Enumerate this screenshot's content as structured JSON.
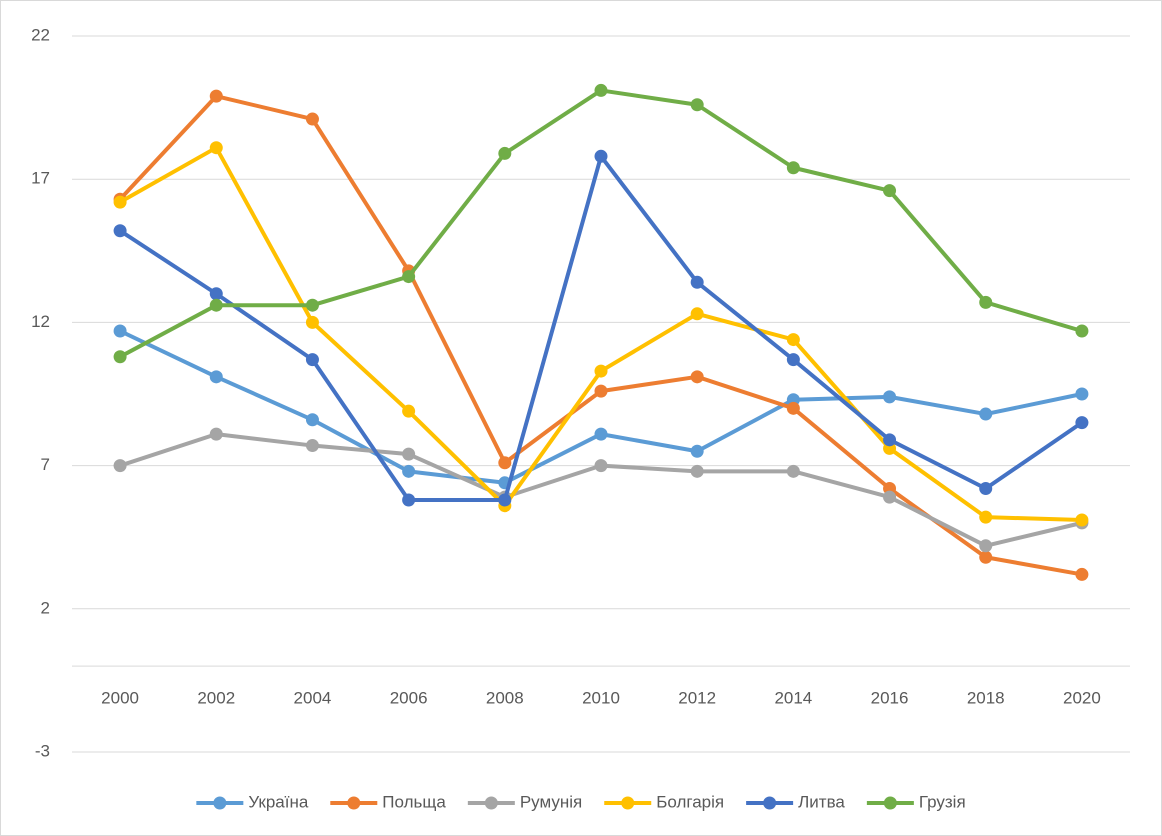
{
  "chart_data": {
    "type": "line",
    "categories": [
      "2000",
      "2002",
      "2004",
      "2006",
      "2008",
      "2010",
      "2012",
      "2014",
      "2016",
      "2018",
      "2020"
    ],
    "series": [
      {
        "name": "Україна",
        "color": "#5b9bd5",
        "values": [
          11.7,
          10.1,
          8.6,
          6.8,
          6.4,
          8.1,
          7.5,
          9.3,
          9.4,
          8.8,
          9.5
        ]
      },
      {
        "name": "Польща",
        "color": "#ed7d31",
        "values": [
          16.3,
          19.9,
          19.1,
          13.8,
          7.1,
          9.6,
          10.1,
          9.0,
          6.2,
          3.8,
          3.2
        ]
      },
      {
        "name": "Румунія",
        "color": "#a5a5a5",
        "values": [
          7.0,
          8.1,
          7.7,
          7.4,
          5.9,
          7.0,
          6.8,
          6.8,
          5.9,
          4.2,
          5.0
        ]
      },
      {
        "name": "Болгарія",
        "color": "#ffc000",
        "values": [
          16.2,
          18.1,
          12.0,
          8.9,
          5.6,
          10.3,
          12.3,
          11.4,
          7.6,
          5.2,
          5.1
        ]
      },
      {
        "name": "Литва",
        "color": "#4472c4",
        "values": [
          15.2,
          13.0,
          10.7,
          5.8,
          5.8,
          17.8,
          13.4,
          10.7,
          7.9,
          6.2,
          8.5
        ]
      },
      {
        "name": "Грузія",
        "color": "#70ad47",
        "values": [
          10.8,
          12.6,
          12.6,
          13.6,
          17.9,
          20.1,
          19.6,
          17.4,
          16.6,
          12.7,
          11.7
        ]
      }
    ],
    "ylim": [
      -3,
      22
    ],
    "yticks": [
      -3,
      2,
      7,
      12,
      17,
      22
    ],
    "grid": true,
    "legend": "bottom"
  }
}
